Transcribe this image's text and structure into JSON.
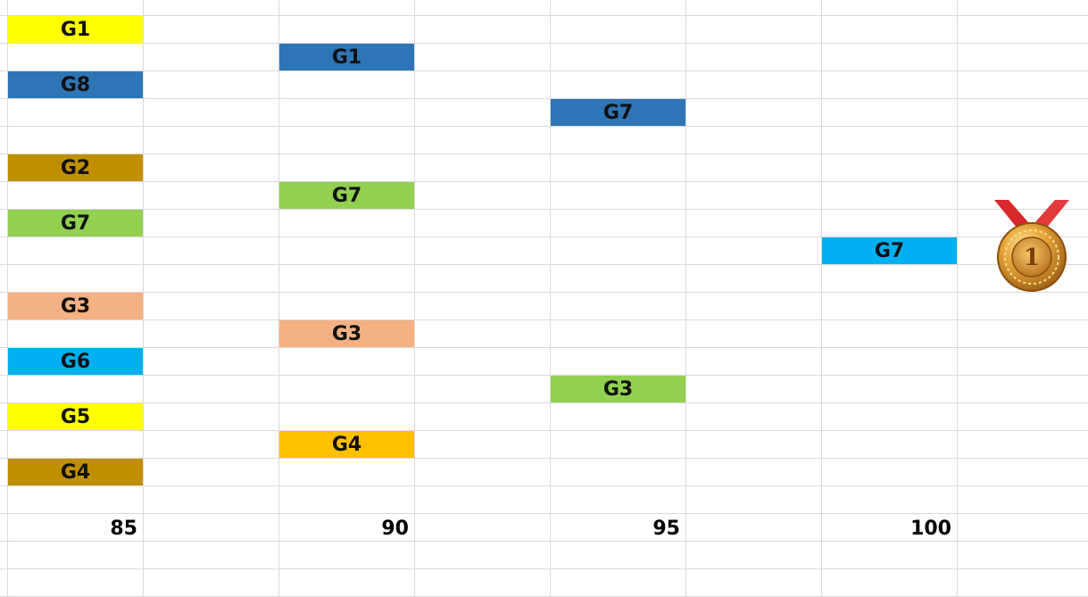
{
  "colors": {
    "yellow": "#ffff00",
    "blue": "#2e75b6",
    "gold": "#bf8f00",
    "green": "#92d050",
    "peach": "#f4b183",
    "cyan": "#00b0f0",
    "orange": "#ffc000",
    "gridline": "#d9d9d9"
  },
  "cells": [
    {
      "label": "G1",
      "col": 0,
      "row": 0,
      "color": "yellow"
    },
    {
      "label": "G8",
      "col": 0,
      "row": 2,
      "color": "blue"
    },
    {
      "label": "G2",
      "col": 0,
      "row": 5,
      "color": "gold"
    },
    {
      "label": "G7",
      "col": 0,
      "row": 7,
      "color": "green"
    },
    {
      "label": "G3",
      "col": 0,
      "row": 10,
      "color": "peach"
    },
    {
      "label": "G6",
      "col": 0,
      "row": 12,
      "color": "cyan"
    },
    {
      "label": "G5",
      "col": 0,
      "row": 14,
      "color": "yellow"
    },
    {
      "label": "G4",
      "col": 0,
      "row": 16,
      "color": "gold"
    },
    {
      "label": "G1",
      "col": 2,
      "row": 1,
      "color": "blue"
    },
    {
      "label": "G7",
      "col": 2,
      "row": 6,
      "color": "green"
    },
    {
      "label": "G3",
      "col": 2,
      "row": 11,
      "color": "peach"
    },
    {
      "label": "G4",
      "col": 2,
      "row": 15,
      "color": "orange"
    },
    {
      "label": "G7",
      "col": 4,
      "row": 3,
      "color": "blue"
    },
    {
      "label": "G3",
      "col": 4,
      "row": 13,
      "color": "green"
    },
    {
      "label": "G7",
      "col": 6,
      "row": 8,
      "color": "cyan"
    }
  ],
  "scale_labels": [
    {
      "text": "85",
      "col": 0
    },
    {
      "text": "90",
      "col": 2
    },
    {
      "text": "95",
      "col": 4
    },
    {
      "text": "100",
      "col": 6
    }
  ],
  "medal": {
    "icon": "gold-medal-icon",
    "text": "1"
  }
}
